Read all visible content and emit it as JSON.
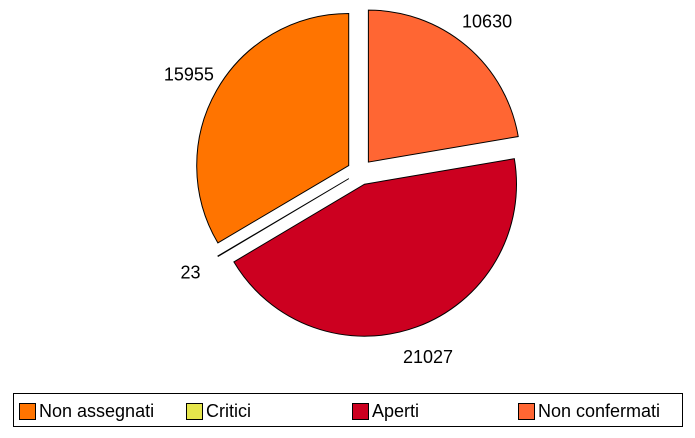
{
  "chart_data": {
    "type": "pie",
    "title": "",
    "start": "top",
    "direction": "clockwise",
    "exploded": true,
    "slices": [
      {
        "label": "Non confermati",
        "value": 10630,
        "color": "#FF6633"
      },
      {
        "label": "Aperti",
        "value": 21027,
        "color": "#CC0020"
      },
      {
        "label": "Critici",
        "value": 23,
        "color": "#E6E64C"
      },
      {
        "label": "Non assegnati",
        "value": 15955,
        "color": "#FF7400"
      }
    ],
    "legend": {
      "placement": "bottom",
      "items": [
        {
          "label": "Non assegnati",
          "color": "#FF7400"
        },
        {
          "label": "Critici",
          "color": "#E6E64C"
        },
        {
          "label": "Aperti",
          "color": "#CC0020"
        },
        {
          "label": "Non confermati",
          "color": "#FF6633"
        }
      ]
    }
  }
}
